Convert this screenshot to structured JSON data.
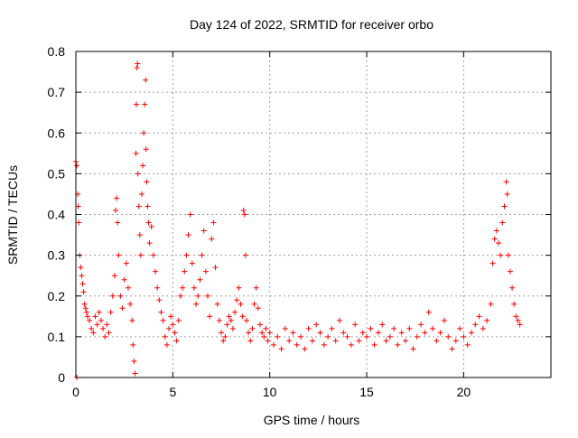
{
  "chart_data": {
    "type": "scatter",
    "title": "Day 124 of 2022, SRMTID for receiver orbo",
    "xlabel": "GPS time / hours",
    "ylabel": "SRMTID / TECUs",
    "xlim": [
      0,
      24.5
    ],
    "ylim": [
      0,
      0.8
    ],
    "xticks": [
      0,
      5,
      10,
      15,
      20
    ],
    "yticks": [
      0,
      0.1,
      0.2,
      0.3,
      0.4,
      0.5,
      0.6,
      0.7,
      0.8
    ],
    "xtick_labels": [
      "0",
      "5",
      "10",
      "15",
      "20"
    ],
    "ytick_labels": [
      "0",
      "0.1",
      "0.2",
      "0.3",
      "0.4",
      "0.5",
      "0.6",
      "0.7",
      "0.8"
    ],
    "grid": true,
    "marker": "+",
    "marker_color": "#ff0000",
    "series": [
      {
        "name": "SRMTID",
        "points": [
          [
            0.0,
            0.53
          ],
          [
            0.05,
            0.52
          ],
          [
            0.05,
            0.0
          ],
          [
            0.1,
            0.45
          ],
          [
            0.12,
            0.42
          ],
          [
            0.15,
            0.38
          ],
          [
            0.2,
            0.3
          ],
          [
            0.25,
            0.27
          ],
          [
            0.3,
            0.25
          ],
          [
            0.35,
            0.23
          ],
          [
            0.4,
            0.21
          ],
          [
            0.45,
            0.18
          ],
          [
            0.5,
            0.17
          ],
          [
            0.55,
            0.16
          ],
          [
            0.6,
            0.15
          ],
          [
            0.7,
            0.14
          ],
          [
            0.8,
            0.12
          ],
          [
            0.9,
            0.11
          ],
          [
            1.0,
            0.15
          ],
          [
            1.1,
            0.13
          ],
          [
            1.2,
            0.16
          ],
          [
            1.3,
            0.14
          ],
          [
            1.4,
            0.12
          ],
          [
            1.5,
            0.1
          ],
          [
            1.6,
            0.13
          ],
          [
            1.7,
            0.11
          ],
          [
            1.8,
            0.16
          ],
          [
            1.9,
            0.2
          ],
          [
            2.0,
            0.25
          ],
          [
            2.05,
            0.41
          ],
          [
            2.1,
            0.44
          ],
          [
            2.15,
            0.38
          ],
          [
            2.2,
            0.3
          ],
          [
            2.3,
            0.2
          ],
          [
            2.4,
            0.17
          ],
          [
            2.5,
            0.24
          ],
          [
            2.6,
            0.28
          ],
          [
            2.7,
            0.22
          ],
          [
            2.8,
            0.18
          ],
          [
            2.9,
            0.14
          ],
          [
            2.95,
            0.08
          ],
          [
            3.0,
            0.04
          ],
          [
            3.05,
            0.01
          ],
          [
            3.1,
            0.55
          ],
          [
            3.12,
            0.67
          ],
          [
            3.15,
            0.76
          ],
          [
            3.18,
            0.77
          ],
          [
            3.2,
            0.5
          ],
          [
            3.25,
            0.42
          ],
          [
            3.3,
            0.35
          ],
          [
            3.35,
            0.3
          ],
          [
            3.4,
            0.45
          ],
          [
            3.45,
            0.52
          ],
          [
            3.5,
            0.6
          ],
          [
            3.55,
            0.67
          ],
          [
            3.6,
            0.73
          ],
          [
            3.62,
            0.56
          ],
          [
            3.65,
            0.48
          ],
          [
            3.7,
            0.42
          ],
          [
            3.75,
            0.38
          ],
          [
            3.8,
            0.33
          ],
          [
            3.9,
            0.37
          ],
          [
            4.0,
            0.3
          ],
          [
            4.1,
            0.26
          ],
          [
            4.2,
            0.22
          ],
          [
            4.3,
            0.19
          ],
          [
            4.4,
            0.16
          ],
          [
            4.5,
            0.14
          ],
          [
            4.6,
            0.1
          ],
          [
            4.7,
            0.08
          ],
          [
            4.8,
            0.12
          ],
          [
            4.9,
            0.15
          ],
          [
            5.0,
            0.13
          ],
          [
            5.1,
            0.11
          ],
          [
            5.2,
            0.09
          ],
          [
            5.3,
            0.14
          ],
          [
            5.4,
            0.2
          ],
          [
            5.5,
            0.22
          ],
          [
            5.6,
            0.26
          ],
          [
            5.7,
            0.3
          ],
          [
            5.8,
            0.35
          ],
          [
            5.9,
            0.4
          ],
          [
            6.0,
            0.28
          ],
          [
            6.1,
            0.22
          ],
          [
            6.2,
            0.18
          ],
          [
            6.3,
            0.2
          ],
          [
            6.4,
            0.24
          ],
          [
            6.5,
            0.3
          ],
          [
            6.6,
            0.36
          ],
          [
            6.7,
            0.26
          ],
          [
            6.8,
            0.2
          ],
          [
            6.9,
            0.15
          ],
          [
            7.0,
            0.34
          ],
          [
            7.1,
            0.38
          ],
          [
            7.2,
            0.27
          ],
          [
            7.3,
            0.18
          ],
          [
            7.4,
            0.14
          ],
          [
            7.5,
            0.11
          ],
          [
            7.6,
            0.09
          ],
          [
            7.7,
            0.1
          ],
          [
            7.8,
            0.13
          ],
          [
            7.9,
            0.15
          ],
          [
            8.0,
            0.14
          ],
          [
            8.1,
            0.12
          ],
          [
            8.2,
            0.16
          ],
          [
            8.3,
            0.19
          ],
          [
            8.4,
            0.22
          ],
          [
            8.5,
            0.18
          ],
          [
            8.6,
            0.15
          ],
          [
            8.65,
            0.41
          ],
          [
            8.7,
            0.4
          ],
          [
            8.75,
            0.3
          ],
          [
            8.8,
            0.14
          ],
          [
            8.9,
            0.11
          ],
          [
            9.0,
            0.09
          ],
          [
            9.1,
            0.12
          ],
          [
            9.2,
            0.18
          ],
          [
            9.3,
            0.22
          ],
          [
            9.4,
            0.17
          ],
          [
            9.5,
            0.13
          ],
          [
            9.6,
            0.11
          ],
          [
            9.7,
            0.1
          ],
          [
            9.8,
            0.12
          ],
          [
            9.9,
            0.09
          ],
          [
            10.0,
            0.11
          ],
          [
            10.2,
            0.08
          ],
          [
            10.4,
            0.1
          ],
          [
            10.6,
            0.07
          ],
          [
            10.8,
            0.12
          ],
          [
            11.0,
            0.09
          ],
          [
            11.2,
            0.11
          ],
          [
            11.4,
            0.08
          ],
          [
            11.6,
            0.1
          ],
          [
            11.8,
            0.07
          ],
          [
            12.0,
            0.12
          ],
          [
            12.2,
            0.09
          ],
          [
            12.4,
            0.13
          ],
          [
            12.6,
            0.11
          ],
          [
            12.8,
            0.08
          ],
          [
            13.0,
            0.1
          ],
          [
            13.2,
            0.12
          ],
          [
            13.4,
            0.09
          ],
          [
            13.6,
            0.14
          ],
          [
            13.8,
            0.11
          ],
          [
            14.0,
            0.1
          ],
          [
            14.2,
            0.08
          ],
          [
            14.4,
            0.13
          ],
          [
            14.6,
            0.09
          ],
          [
            14.8,
            0.11
          ],
          [
            15.0,
            0.1
          ],
          [
            15.2,
            0.12
          ],
          [
            15.4,
            0.08
          ],
          [
            15.6,
            0.11
          ],
          [
            15.8,
            0.13
          ],
          [
            16.0,
            0.09
          ],
          [
            16.2,
            0.1
          ],
          [
            16.4,
            0.12
          ],
          [
            16.6,
            0.08
          ],
          [
            16.8,
            0.11
          ],
          [
            17.0,
            0.09
          ],
          [
            17.2,
            0.12
          ],
          [
            17.4,
            0.07
          ],
          [
            17.6,
            0.1
          ],
          [
            17.8,
            0.13
          ],
          [
            18.0,
            0.11
          ],
          [
            18.2,
            0.16
          ],
          [
            18.4,
            0.12
          ],
          [
            18.6,
            0.09
          ],
          [
            18.8,
            0.11
          ],
          [
            19.0,
            0.14
          ],
          [
            19.2,
            0.1
          ],
          [
            19.4,
            0.07
          ],
          [
            19.6,
            0.09
          ],
          [
            19.8,
            0.12
          ],
          [
            20.0,
            0.1
          ],
          [
            20.2,
            0.08
          ],
          [
            20.4,
            0.11
          ],
          [
            20.6,
            0.13
          ],
          [
            20.8,
            0.15
          ],
          [
            21.0,
            0.12
          ],
          [
            21.2,
            0.14
          ],
          [
            21.4,
            0.18
          ],
          [
            21.5,
            0.28
          ],
          [
            21.6,
            0.34
          ],
          [
            21.7,
            0.36
          ],
          [
            21.8,
            0.33
          ],
          [
            21.9,
            0.3
          ],
          [
            22.0,
            0.38
          ],
          [
            22.1,
            0.42
          ],
          [
            22.2,
            0.48
          ],
          [
            22.25,
            0.45
          ],
          [
            22.3,
            0.3
          ],
          [
            22.4,
            0.26
          ],
          [
            22.5,
            0.22
          ],
          [
            22.6,
            0.18
          ],
          [
            22.7,
            0.15
          ],
          [
            22.8,
            0.14
          ],
          [
            22.9,
            0.13
          ]
        ]
      }
    ]
  }
}
